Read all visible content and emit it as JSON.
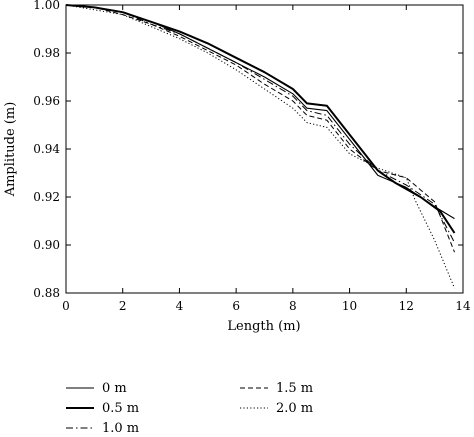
{
  "chart_data": {
    "type": "line",
    "xlabel": "Length (m)",
    "ylabel": "Amplitude (m)",
    "xlim": [
      0,
      14
    ],
    "ylim": [
      0.88,
      1.0
    ],
    "xticks": [
      "0",
      "2",
      "4",
      "6",
      "8",
      "10",
      "12",
      "14"
    ],
    "yticks": [
      "0.88",
      "0.90",
      "0.92",
      "0.94",
      "0.96",
      "0.98",
      "1.00"
    ],
    "grid": false,
    "legend_placement": "bottom",
    "series": [
      {
        "name": "0 m",
        "style": "solid-thin",
        "x": [
          0,
          1,
          2,
          3,
          4,
          5,
          6,
          7,
          8,
          8.5,
          9.2,
          10,
          11,
          12,
          13,
          13.7
        ],
        "y": [
          1.0,
          0.999,
          0.997,
          0.993,
          0.988,
          0.982,
          0.976,
          0.97,
          0.963,
          0.957,
          0.956,
          0.944,
          0.929,
          0.924,
          0.916,
          0.911
        ]
      },
      {
        "name": "0.5 m",
        "style": "solid-thick",
        "x": [
          0,
          1,
          2,
          3,
          4,
          5,
          6,
          7,
          8,
          8.5,
          9.2,
          10,
          11,
          11.6,
          12.5,
          13.2,
          13.7
        ],
        "y": [
          1.0,
          0.999,
          0.997,
          0.993,
          0.989,
          0.984,
          0.978,
          0.972,
          0.965,
          0.959,
          0.958,
          0.946,
          0.931,
          0.926,
          0.92,
          0.914,
          0.905
        ]
      },
      {
        "name": "1.0 m",
        "style": "dashdot",
        "x": [
          0,
          1,
          2,
          3,
          4,
          5,
          6,
          7,
          8,
          8.5,
          9.2,
          10,
          11,
          12,
          13,
          13.7
        ],
        "y": [
          1.0,
          0.999,
          0.997,
          0.992,
          0.988,
          0.982,
          0.976,
          0.969,
          0.962,
          0.956,
          0.954,
          0.942,
          0.931,
          0.925,
          0.917,
          0.901
        ]
      },
      {
        "name": "1.5 m",
        "style": "dashed",
        "x": [
          0,
          1,
          2,
          3,
          4,
          5,
          6,
          7,
          8,
          8.5,
          9.2,
          10,
          11,
          12,
          13,
          13.7
        ],
        "y": [
          1.0,
          0.999,
          0.996,
          0.992,
          0.987,
          0.981,
          0.975,
          0.967,
          0.96,
          0.954,
          0.952,
          0.94,
          0.931,
          0.928,
          0.918,
          0.897
        ]
      },
      {
        "name": "2.0 m",
        "style": "dotted",
        "x": [
          0,
          1,
          2,
          3,
          4,
          5,
          6,
          7,
          8,
          8.5,
          9.2,
          10,
          11,
          12,
          12.3,
          13,
          13.7
        ],
        "y": [
          1.0,
          0.998,
          0.996,
          0.991,
          0.986,
          0.98,
          0.973,
          0.965,
          0.957,
          0.951,
          0.949,
          0.938,
          0.932,
          0.928,
          0.919,
          0.902,
          0.882
        ]
      }
    ]
  }
}
